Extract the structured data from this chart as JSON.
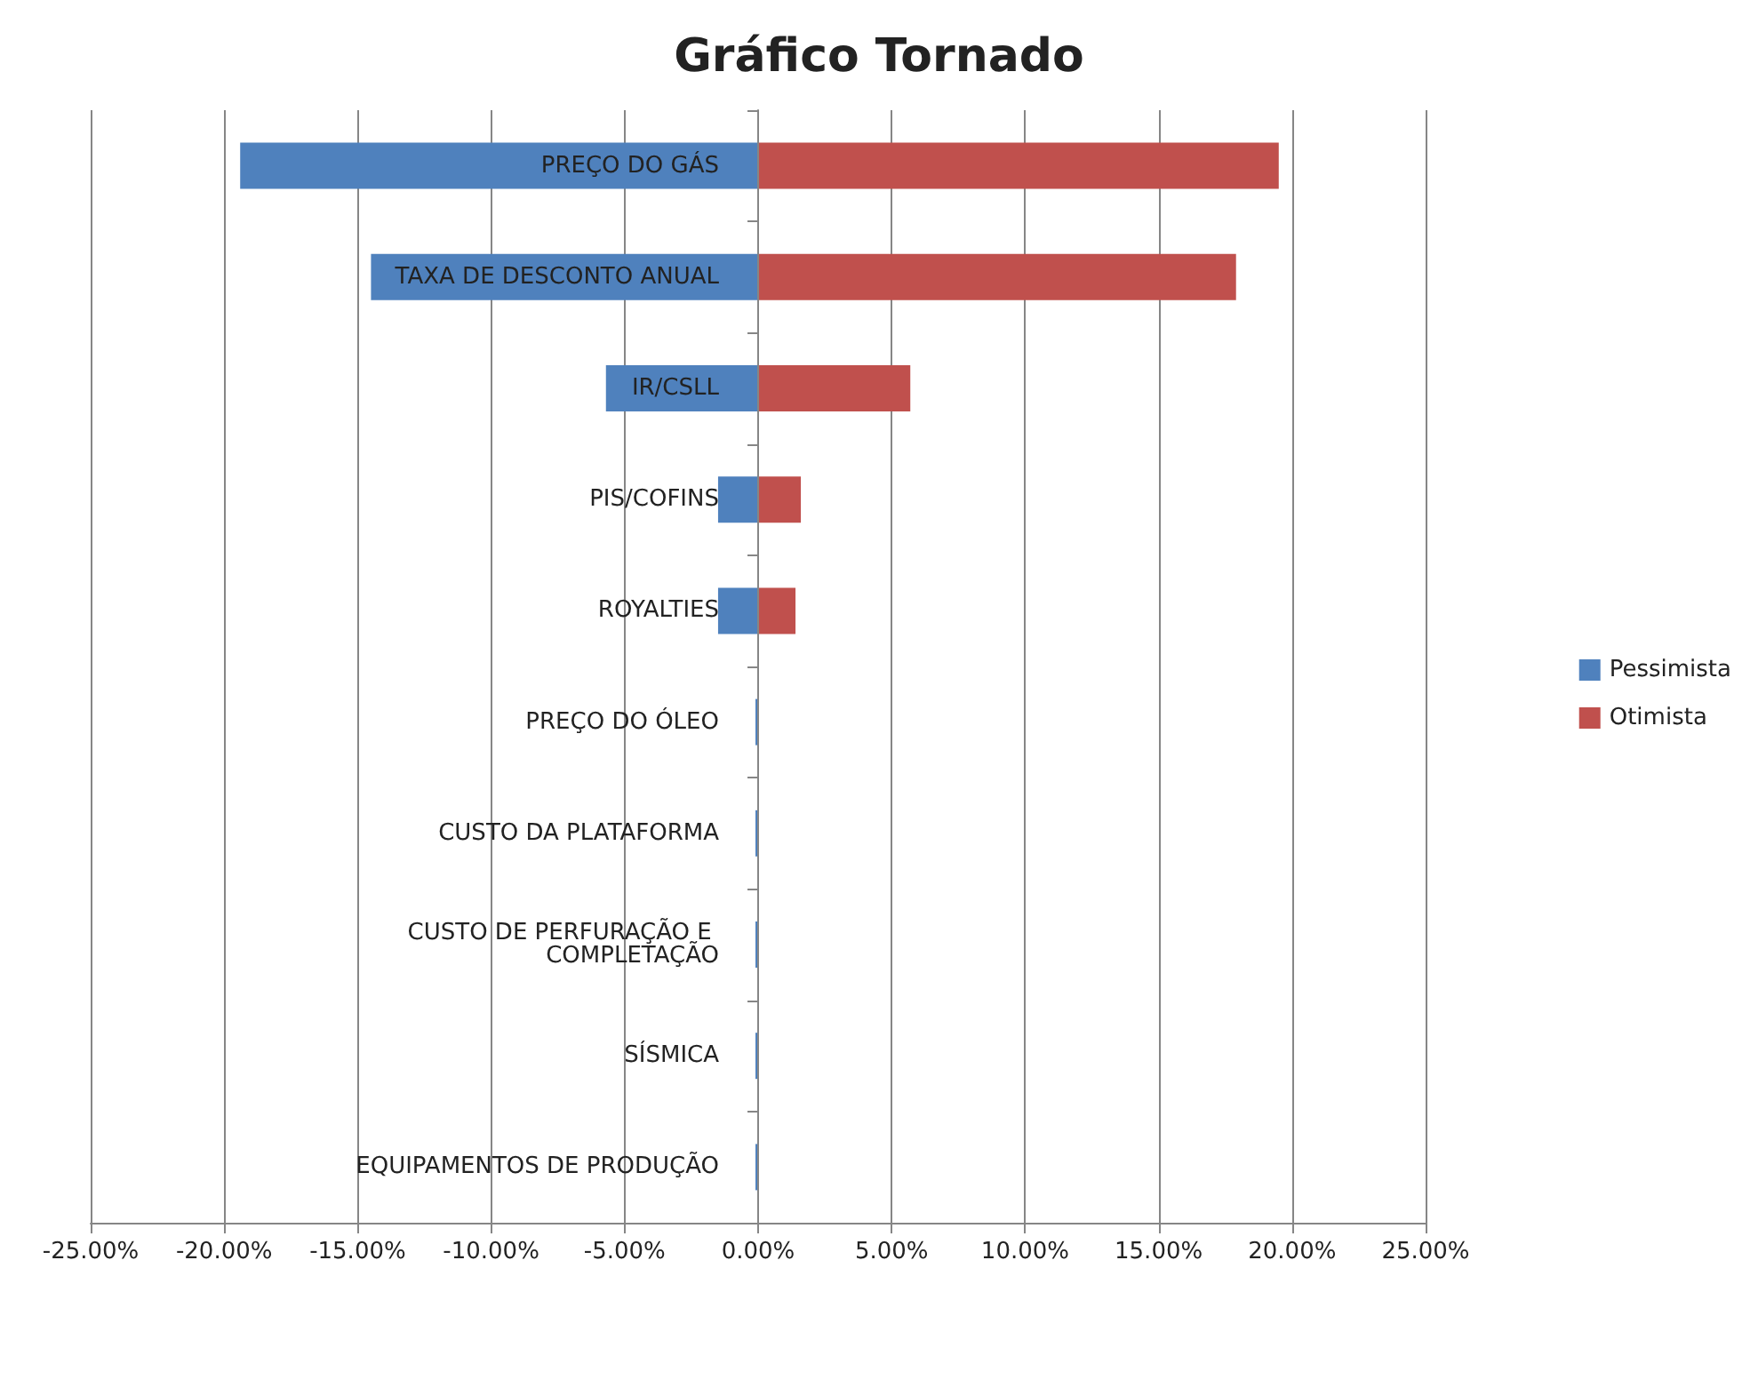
{
  "chart_data": {
    "type": "bar",
    "orientation": "horizontal",
    "title": "Gráfico Tornado",
    "categories": [
      "PREÇO DO GÁS",
      "TAXA DE DESCONTO ANUAL",
      "IR/CSLL",
      "PIS/COFINS",
      "ROYALTIES",
      "PREÇO DO ÓLEO",
      "CUSTO DA PLATAFORMA",
      "CUSTO DE PERFURAÇÃO E COMPLETAÇÃO",
      "SÍSMICA",
      "EQUIPAMENTOS DE PRODUÇÃO"
    ],
    "series": [
      {
        "name": "Pessimista",
        "color": "#4f81bd",
        "values": [
          -19.4,
          -14.5,
          -5.7,
          -1.5,
          -1.5,
          -0.1,
          -0.1,
          -0.1,
          -0.1,
          -0.1
        ]
      },
      {
        "name": "Otimista",
        "color": "#c0504d",
        "values": [
          19.5,
          17.9,
          5.7,
          1.6,
          1.4,
          0,
          0,
          0,
          0,
          0
        ]
      }
    ],
    "xlim": [
      -25,
      25
    ],
    "xticks": [
      {
        "value": -25,
        "label": "-25.00%"
      },
      {
        "value": -20,
        "label": "-20.00%"
      },
      {
        "value": -15,
        "label": "-15.00%"
      },
      {
        "value": -10,
        "label": "-10.00%"
      },
      {
        "value": -5,
        "label": "-5.00%"
      },
      {
        "value": 0,
        "label": "0.00%"
      },
      {
        "value": 5,
        "label": "5.00%"
      },
      {
        "value": 10,
        "label": "10.00%"
      },
      {
        "value": 15,
        "label": "15.00%"
      },
      {
        "value": 20,
        "label": "20.00%"
      },
      {
        "value": 25,
        "label": "25.00%"
      }
    ],
    "grid": "x",
    "legend": "right",
    "stacked": true
  }
}
